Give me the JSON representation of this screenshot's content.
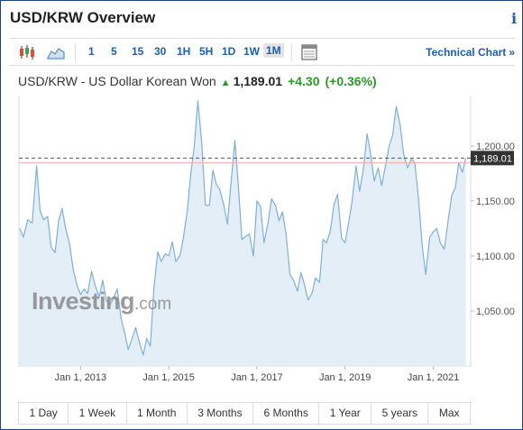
{
  "header": {
    "title": "USD/KRW Overview",
    "info_icon": "info-icon"
  },
  "toolbar": {
    "timeframes": [
      "1",
      "5",
      "15",
      "30",
      "1H",
      "5H",
      "1D",
      "1W",
      "1M"
    ],
    "active_timeframe": "1M",
    "technical_chart_label": "Technical Chart",
    "technical_chart_arrow": "»"
  },
  "quote": {
    "name": "USD/KRW - US Dollar Korean Won",
    "price": "1,189.01",
    "change": "+4.30",
    "change_pct": "(+0.36%)",
    "up_color": "#2a9a2a"
  },
  "ranges": [
    "1 Day",
    "1 Week",
    "1 Month",
    "3 Months",
    "6 Months",
    "1 Year",
    "5 years",
    "Max"
  ],
  "watermark": {
    "main": "Investing",
    "suffix": ".com"
  },
  "chart_data": {
    "type": "area",
    "series_color": "#7fb0d6",
    "fill_color": "#e3eef7",
    "x": [
      2011.62,
      2011.7,
      2011.8,
      2011.9,
      2012.0,
      2012.08,
      2012.16,
      2012.25,
      2012.33,
      2012.42,
      2012.5,
      2012.58,
      2012.66,
      2012.75,
      2012.83,
      2012.92,
      2013.0,
      2013.08,
      2013.16,
      2013.25,
      2013.33,
      2013.42,
      2013.5,
      2013.58,
      2013.66,
      2013.75,
      2013.83,
      2013.92,
      2014.0,
      2014.08,
      2014.16,
      2014.25,
      2014.33,
      2014.42,
      2014.5,
      2014.58,
      2014.66,
      2014.75,
      2014.83,
      2014.92,
      2015.0,
      2015.08,
      2015.16,
      2015.25,
      2015.33,
      2015.42,
      2015.5,
      2015.58,
      2015.66,
      2015.75,
      2015.83,
      2015.92,
      2016.0,
      2016.08,
      2016.16,
      2016.25,
      2016.33,
      2016.42,
      2016.5,
      2016.58,
      2016.66,
      2016.75,
      2016.83,
      2016.92,
      2017.0,
      2017.08,
      2017.16,
      2017.25,
      2017.33,
      2017.42,
      2017.5,
      2017.58,
      2017.66,
      2017.75,
      2017.83,
      2017.92,
      2018.0,
      2018.08,
      2018.16,
      2018.25,
      2018.33,
      2018.42,
      2018.5,
      2018.58,
      2018.66,
      2018.75,
      2018.83,
      2018.92,
      2019.0,
      2019.08,
      2019.16,
      2019.25,
      2019.33,
      2019.42,
      2019.5,
      2019.58,
      2019.66,
      2019.75,
      2019.83,
      2019.92,
      2020.0,
      2020.08,
      2020.16,
      2020.25,
      2020.33,
      2020.42,
      2020.5,
      2020.58,
      2020.66,
      2020.75,
      2020.83,
      2020.92,
      2021.0,
      2021.08,
      2021.16,
      2021.25,
      2021.33,
      2021.42,
      2021.5,
      2021.58,
      2021.66,
      2021.74
    ],
    "y": [
      1125,
      1117,
      1133,
      1130,
      1182,
      1141,
      1133,
      1136,
      1108,
      1103,
      1132,
      1143,
      1125,
      1111,
      1088,
      1073,
      1065,
      1070,
      1066,
      1086,
      1073,
      1063,
      1078,
      1060,
      1055,
      1062,
      1070,
      1043,
      1030,
      1015,
      1024,
      1035,
      1022,
      1010,
      1025,
      1018,
      1070,
      1104,
      1095,
      1102,
      1100,
      1113,
      1095,
      1100,
      1116,
      1141,
      1175,
      1200,
      1241,
      1202,
      1146,
      1146,
      1178,
      1165,
      1160,
      1146,
      1129,
      1170,
      1205,
      1163,
      1115,
      1118,
      1120,
      1100,
      1150,
      1145,
      1112,
      1130,
      1152,
      1146,
      1132,
      1140,
      1120,
      1083,
      1078,
      1068,
      1085,
      1074,
      1060,
      1066,
      1080,
      1076,
      1115,
      1112,
      1122,
      1147,
      1156,
      1116,
      1112,
      1130,
      1150,
      1182,
      1159,
      1180,
      1211,
      1193,
      1168,
      1180,
      1164,
      1183,
      1200,
      1210,
      1236,
      1219,
      1192,
      1180,
      1188,
      1185,
      1155,
      1110,
      1083,
      1117,
      1122,
      1125,
      1112,
      1106,
      1130,
      1155,
      1162,
      1185,
      1176,
      1189
    ],
    "ylim": [
      1000,
      1245
    ],
    "yticks": [
      1050,
      1100,
      1150,
      1200
    ],
    "ytick_labels": [
      "1,050.00",
      "1,100.00",
      "1,150.00",
      "1,200.00"
    ],
    "xlim": [
      2011.6,
      2021.85
    ],
    "xticks": [
      2013.0,
      2015.0,
      2017.0,
      2019.0,
      2021.0
    ],
    "xtick_labels": [
      "Jan 1, 2013",
      "Jan 1, 2015",
      "Jan 1, 2017",
      "Jan 1, 2019",
      "Jan 1, 2021"
    ],
    "last_value": 1189.01,
    "last_value_label": "1,189.01",
    "reference_line": 1184.71,
    "reference_line_color": "#f2b4b4",
    "grid": false
  }
}
